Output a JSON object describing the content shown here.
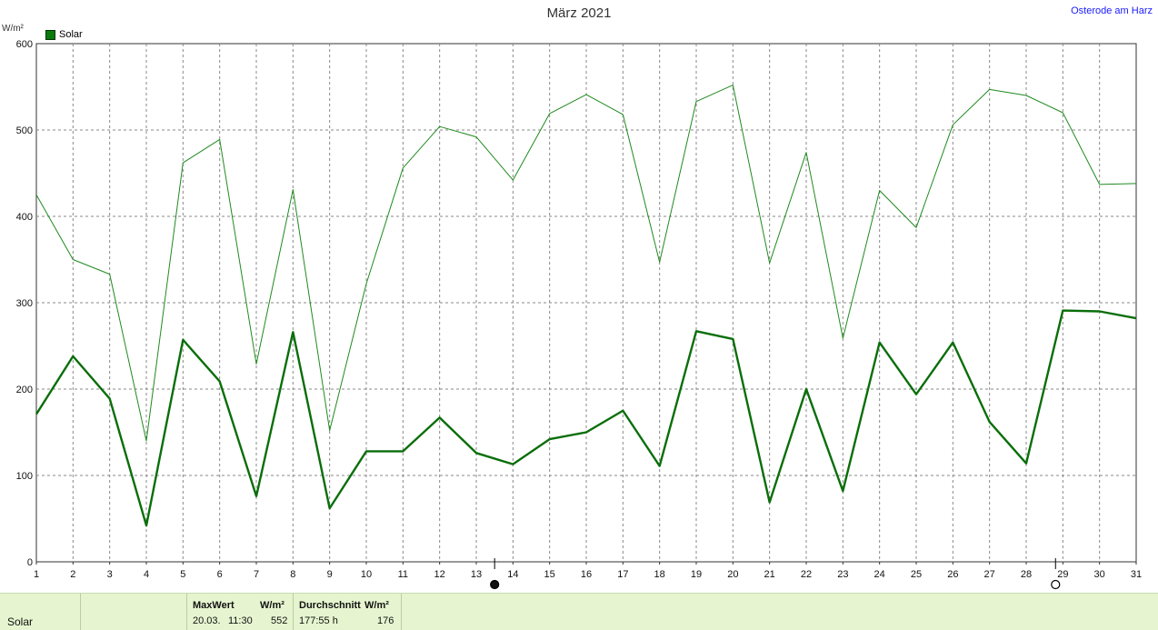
{
  "title": "März 2021",
  "location": "Osterode am Harz",
  "unit": "W/m²",
  "legend": {
    "label": "Solar",
    "color": "#0a7a0a"
  },
  "chart_data": {
    "type": "line",
    "title": "März 2021",
    "ylabel": "W/m²",
    "xlabel": "",
    "ylim": [
      0,
      600
    ],
    "xlim": [
      1,
      31
    ],
    "yticks": [
      "0",
      "100",
      "200",
      "300",
      "400",
      "500",
      "600"
    ],
    "x": [
      1,
      2,
      3,
      4,
      5,
      6,
      7,
      8,
      9,
      10,
      11,
      12,
      13,
      14,
      15,
      16,
      17,
      18,
      19,
      20,
      21,
      22,
      23,
      24,
      25,
      26,
      27,
      28,
      29,
      30,
      31
    ],
    "grid": true,
    "legend_position": "top-left",
    "series": [
      {
        "name": "Solar",
        "style": "max",
        "values": [
          425,
          350,
          333,
          140,
          462,
          489,
          229,
          431,
          152,
          322,
          456,
          504,
          492,
          442,
          519,
          541,
          518,
          347,
          533,
          552,
          346,
          474,
          259,
          430,
          387,
          506,
          547,
          540,
          520,
          437,
          438
        ]
      },
      {
        "name": "Solar",
        "style": "avg",
        "values": [
          171,
          238,
          189,
          42,
          257,
          209,
          76,
          266,
          62,
          128,
          128,
          167,
          126,
          113,
          142,
          150,
          175,
          111,
          267,
          258,
          69,
          200,
          82,
          254,
          194,
          254,
          162,
          114,
          291,
          290,
          282
        ]
      }
    ],
    "markers": [
      {
        "x": 13.5,
        "symbol": "full-moon"
      },
      {
        "x": 28.8,
        "symbol": "new-moon"
      }
    ]
  },
  "footer": {
    "series_name": "Solar",
    "max_header": "MaxWert",
    "max_unit_header": "W/m²",
    "max_date": "20.03.",
    "max_time": "11:30",
    "max_value": "552",
    "avg_header": "Durchschnitt",
    "avg_unit_header": "W/m²",
    "avg_duration": "177:55 h",
    "avg_value": "176"
  }
}
